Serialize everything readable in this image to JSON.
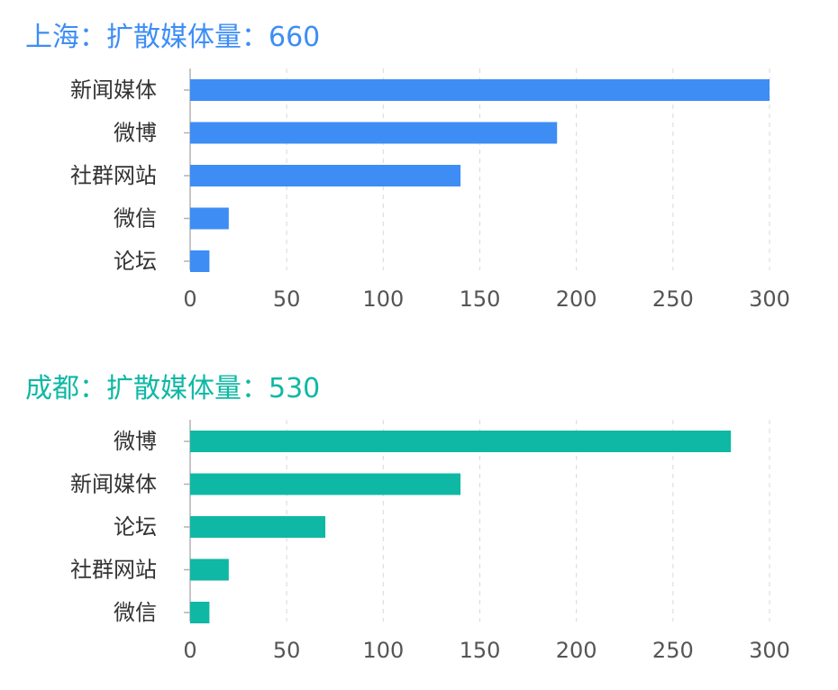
{
  "charts": [
    {
      "city": "上海",
      "title": "上海：扩散媒体量：660",
      "color": "#3d8df5"
    },
    {
      "city": "成都",
      "title": "成都：扩散媒体量：530",
      "color": "#0fb8a4"
    }
  ],
  "chart_data": [
    {
      "type": "bar",
      "orientation": "horizontal",
      "title": "上海：扩散媒体量：660",
      "categories": [
        "新闻媒体",
        "微博",
        "社群网站",
        "微信",
        "论坛"
      ],
      "values": [
        300,
        190,
        140,
        20,
        10
      ],
      "xlim": [
        0,
        300
      ],
      "xticks": [
        0,
        50,
        100,
        150,
        200,
        250,
        300
      ],
      "grid": "vertical dashed",
      "color": "#3d8df5"
    },
    {
      "type": "bar",
      "orientation": "horizontal",
      "title": "成都：扩散媒体量：530",
      "categories": [
        "微博",
        "新闻媒体",
        "论坛",
        "社群网站",
        "微信"
      ],
      "values": [
        280,
        140,
        70,
        20,
        10
      ],
      "xlim": [
        0,
        300
      ],
      "xticks": [
        0,
        50,
        100,
        150,
        200,
        250,
        300
      ],
      "grid": "vertical dashed",
      "color": "#0fb8a4"
    }
  ]
}
